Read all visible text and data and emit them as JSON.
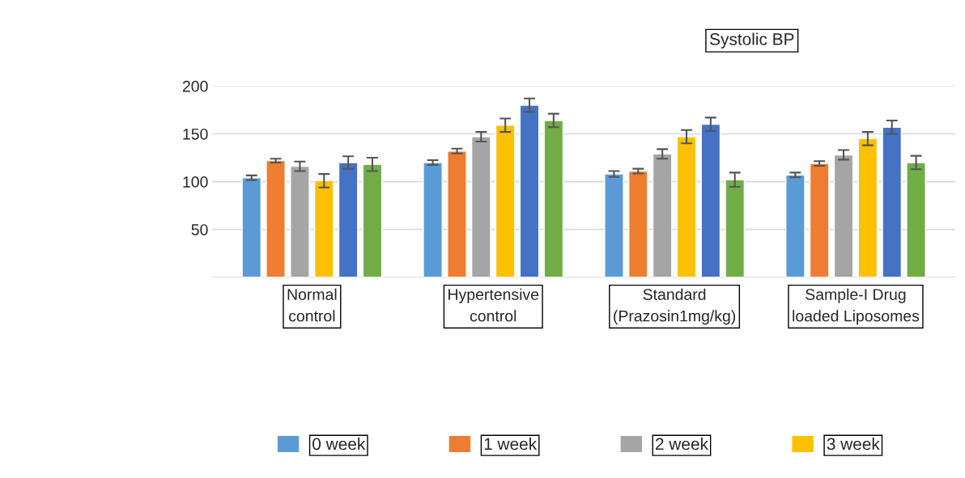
{
  "chart_data": {
    "type": "bar",
    "title": "Systolic BP",
    "categories": [
      "Normal\ncontrol",
      "Hypertensive\ncontrol",
      "Standard\n(Prazosin1mg/kg)",
      "Sample-I Drug\nloaded Liposomes"
    ],
    "series": [
      {
        "name": "0 week",
        "color": "#5b9bd5",
        "values": [
          104,
          120,
          108,
          107
        ],
        "errors": [
          2.5,
          2.5,
          3,
          2.5
        ]
      },
      {
        "name": "1 week",
        "color": "#ed7d31",
        "values": [
          122,
          132,
          111,
          119
        ],
        "errors": [
          2,
          2.5,
          2.5,
          2.5
        ]
      },
      {
        "name": "2 week",
        "color": "#a5a5a5",
        "values": [
          116,
          147,
          129,
          128
        ],
        "errors": [
          5,
          5,
          5,
          5
        ]
      },
      {
        "name": "3 week",
        "color": "#ffc000",
        "values": [
          101,
          159,
          147,
          145
        ],
        "errors": [
          7,
          7,
          7,
          7
        ]
      },
      {
        "color": "#4472c4",
        "values": [
          120,
          180,
          160,
          157
        ],
        "errors": [
          6.5,
          7,
          7,
          7
        ]
      },
      {
        "color": "#70ad47",
        "values": [
          118,
          164,
          102,
          120
        ],
        "errors": [
          7,
          7,
          7.5,
          7
        ]
      }
    ],
    "ylim": [
      0,
      200
    ],
    "yticks": [
      50,
      100,
      150,
      200
    ],
    "grid": "y",
    "legend": "bottom"
  }
}
